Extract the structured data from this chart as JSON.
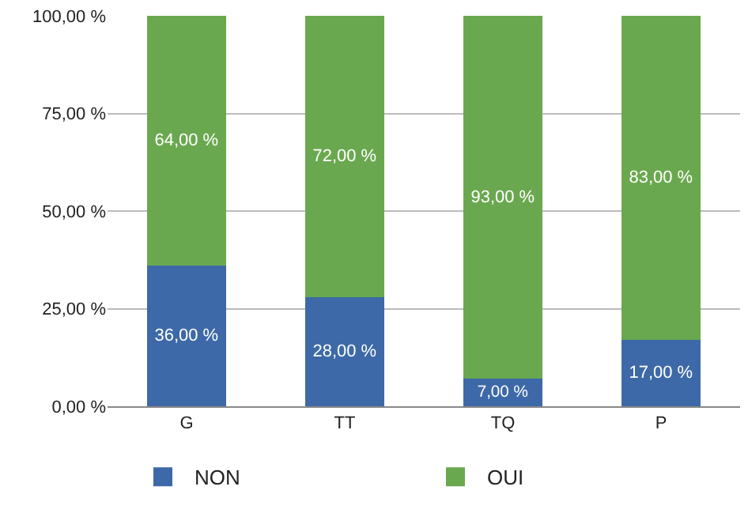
{
  "chart_data": {
    "type": "bar",
    "stacked": true,
    "categories": [
      "G",
      "TT",
      "TQ",
      "P"
    ],
    "series": [
      {
        "name": "NON",
        "color": "#3d69a8",
        "values": [
          36,
          28,
          7,
          17
        ],
        "value_labels": [
          "36,00 %",
          "28,00 %",
          "7,00 %",
          "17,00 %"
        ]
      },
      {
        "name": "OUI",
        "color": "#6aa84f",
        "values": [
          64,
          72,
          93,
          83
        ],
        "value_labels": [
          "64,00 %",
          "72,00 %",
          "93,00 %",
          "83,00 %"
        ]
      }
    ],
    "ylim": [
      0,
      100
    ],
    "yticks": [
      {
        "value": 0,
        "label": "0,00 %"
      },
      {
        "value": 25,
        "label": "25,00 %"
      },
      {
        "value": 50,
        "label": "50,00 %"
      },
      {
        "value": 75,
        "label": "75,00 %"
      },
      {
        "value": 100,
        "label": "100,00 %"
      }
    ],
    "grid": "y",
    "legend": "bottom"
  }
}
